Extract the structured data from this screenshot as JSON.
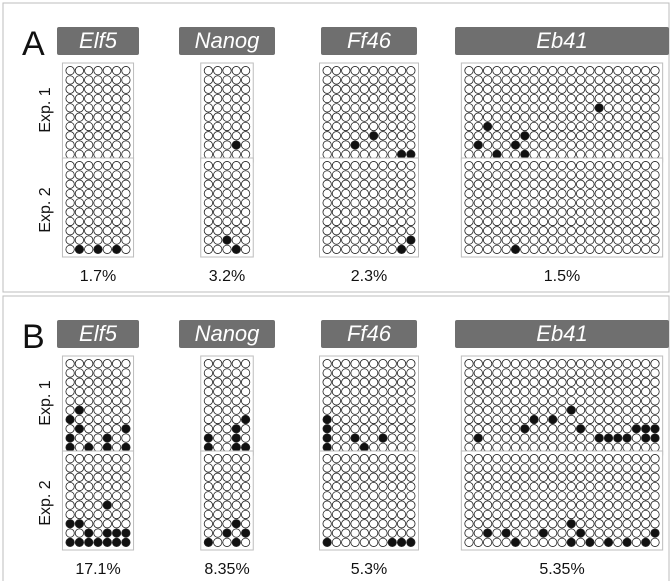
{
  "panels": [
    {
      "letter": "A",
      "genes": [
        {
          "name": "Elf5",
          "cols": 7,
          "rows": 10,
          "exp1": [],
          "exp2": [
            [
              9,
              1
            ],
            [
              9,
              3
            ],
            [
              9,
              5
            ]
          ],
          "pct": "1.7%"
        },
        {
          "name": "Nanog",
          "cols": 5,
          "rows": 10,
          "exp1": [
            [
              8,
              3
            ]
          ],
          "exp2": [
            [
              8,
              2
            ],
            [
              9,
              3
            ],
            [
              9,
              5
            ]
          ],
          "pct": "3.2%"
        },
        {
          "name": "Ff46",
          "cols": 10,
          "rows": 10,
          "exp1": [
            [
              8,
              3
            ],
            [
              7,
              5
            ],
            [
              9,
              8
            ],
            [
              9,
              9
            ]
          ],
          "exp2": [
            [
              9,
              8
            ],
            [
              8,
              9
            ]
          ],
          "pct": "2.3%"
        },
        {
          "name": "Eb41",
          "cols": 21,
          "rows": 10,
          "exp1": [
            [
              6,
              2
            ],
            [
              8,
              1
            ],
            [
              9,
              3
            ],
            [
              7,
              6
            ],
            [
              8,
              5
            ],
            [
              9,
              6
            ],
            [
              4,
              14
            ]
          ],
          "exp2": [
            [
              9,
              5
            ]
          ],
          "pct": "1.5%"
        }
      ]
    },
    {
      "letter": "B",
      "genes": [
        {
          "name": "Elf5",
          "cols": 7,
          "rows": 10,
          "exp1": [
            [
              5,
              1
            ],
            [
              6,
              0
            ],
            [
              7,
              1
            ],
            [
              8,
              0
            ],
            [
              9,
              0
            ],
            [
              8,
              4
            ],
            [
              9,
              2
            ],
            [
              9,
              4
            ],
            [
              9,
              6
            ],
            [
              7,
              6
            ]
          ],
          "exp2": [
            [
              5,
              4
            ],
            [
              7,
              0
            ],
            [
              8,
              2
            ],
            [
              8,
              4
            ],
            [
              8,
              5
            ],
            [
              8,
              6
            ],
            [
              9,
              0
            ],
            [
              9,
              1
            ],
            [
              9,
              2
            ],
            [
              9,
              3
            ],
            [
              9,
              4
            ],
            [
              9,
              5
            ],
            [
              9,
              6
            ],
            [
              7,
              1
            ]
          ],
          "pct": "17.1%"
        },
        {
          "name": "Nanog",
          "cols": 5,
          "rows": 10,
          "exp1": [
            [
              6,
              4
            ],
            [
              7,
              3
            ],
            [
              8,
              0
            ],
            [
              8,
              3
            ],
            [
              9,
              0
            ],
            [
              9,
              3
            ],
            [
              9,
              4
            ]
          ],
          "exp2": [
            [
              7,
              3
            ],
            [
              8,
              2
            ],
            [
              8,
              4
            ],
            [
              9,
              0
            ],
            [
              9,
              3
            ]
          ],
          "pct": "8.35%"
        },
        {
          "name": "Ff46",
          "cols": 10,
          "rows": 10,
          "exp1": [
            [
              6,
              0
            ],
            [
              7,
              0
            ],
            [
              8,
              0
            ],
            [
              9,
              0
            ],
            [
              8,
              3
            ],
            [
              9,
              4
            ],
            [
              8,
              6
            ]
          ],
          "exp2": [
            [
              9,
              0
            ],
            [
              9,
              7
            ],
            [
              9,
              8
            ],
            [
              9,
              9
            ]
          ],
          "pct": "5.3%"
        },
        {
          "name": "Eb41",
          "cols": 21,
          "rows": 10,
          "exp1": [
            [
              8,
              1
            ],
            [
              7,
              6
            ],
            [
              6,
              7
            ],
            [
              6,
              9
            ],
            [
              5,
              11
            ],
            [
              7,
              12
            ],
            [
              8,
              14
            ],
            [
              8,
              15
            ],
            [
              8,
              16
            ],
            [
              8,
              17
            ],
            [
              7,
              18
            ],
            [
              7,
              19
            ],
            [
              8,
              19
            ],
            [
              7,
              20
            ],
            [
              8,
              20
            ]
          ],
          "exp2": [
            [
              8,
              2
            ],
            [
              8,
              4
            ],
            [
              9,
              5
            ],
            [
              8,
              8
            ],
            [
              7,
              11
            ],
            [
              8,
              12
            ],
            [
              9,
              11
            ],
            [
              9,
              13
            ],
            [
              9,
              15
            ],
            [
              9,
              17
            ],
            [
              9,
              19
            ],
            [
              8,
              20
            ]
          ],
          "pct": "5.35%"
        }
      ]
    }
  ],
  "row_labels": [
    "Exp. 1",
    "Exp. 2"
  ],
  "colors": {
    "label_bg": "#6f6f6f",
    "label_text": "#ffffff",
    "filled": "#111111",
    "empty": "#ffffff",
    "stroke": "#222222",
    "frame": "#bdbdbd"
  }
}
